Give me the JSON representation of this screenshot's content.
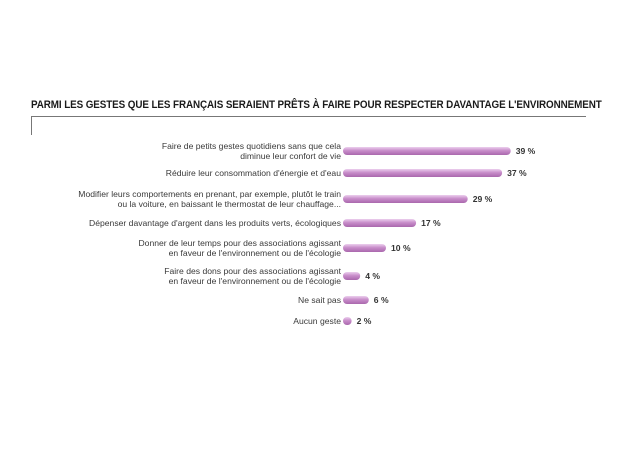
{
  "chart_data": {
    "type": "bar",
    "orientation": "horizontal",
    "title": "PARMI LES GESTES QUE LES FRANÇAIS SERAIENT PRÊTS À FAIRE POUR RESPECTER DAVANTAGE L'ENVIRONNEMENT",
    "categories": [
      [
        "Faire de petits gestes quotidiens sans que cela",
        "diminue leur confort de vie"
      ],
      [
        "Réduire leur consommation d'énergie et d'eau"
      ],
      [
        "Modifier leurs comportements en prenant, par exemple, plutôt le train",
        "ou la voiture, en baissant le thermostat de leur chauffage..."
      ],
      [
        "Dépenser davantage d'argent dans les produits verts, écologiques"
      ],
      [
        "Donner de leur temps pour des associations agissant",
        "en faveur de l'environnement ou de l'écologie"
      ],
      [
        "Faire des dons pour des associations agissant",
        "en faveur de l'environnement ou de l'écologie"
      ],
      [
        "Ne sait pas"
      ],
      [
        "Aucun geste"
      ]
    ],
    "values": [
      39,
      37,
      29,
      17,
      10,
      4,
      6,
      2
    ],
    "value_labels": [
      "39 %",
      "37 %",
      "29 %",
      "17 %",
      "10 %",
      "4 %",
      "6 %",
      "2 %"
    ],
    "unit": "%",
    "xlim": [
      0,
      39
    ],
    "grid": false,
    "bar_color": "#c68bc8",
    "bar_highlight": "#e9c9ea",
    "bar_shadow": "#a866ab"
  }
}
